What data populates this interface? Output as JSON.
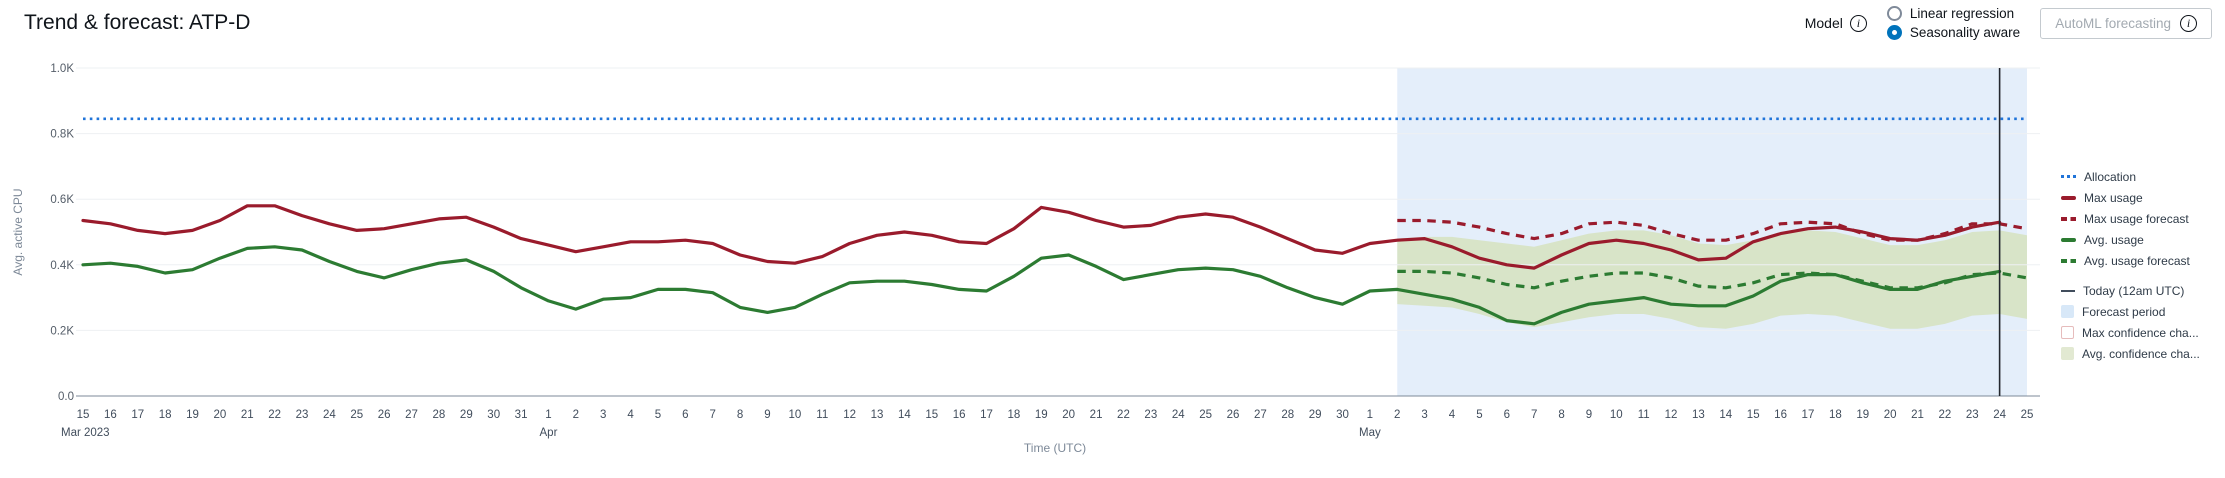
{
  "header": {
    "title": "Trend & forecast: ATP-D"
  },
  "controls": {
    "model_label": "Model",
    "model_info_icon": "info-icon",
    "radio_options": [
      {
        "label": "Linear regression",
        "selected": false
      },
      {
        "label": "Seasonality aware",
        "selected": true
      }
    ],
    "automl_button_label": "AutoML forecasting",
    "automl_info_icon": "info-icon"
  },
  "legend": {
    "items": [
      {
        "label": "Allocation",
        "swatch": "dotted-line",
        "color": "#2074d9",
        "group": 1
      },
      {
        "label": "Max usage",
        "swatch": "solid-line",
        "color": "#9a1b2c",
        "group": 1
      },
      {
        "label": "Max usage forecast",
        "swatch": "dashed-line",
        "color": "#9a1b2c",
        "group": 1
      },
      {
        "label": "Avg. usage",
        "swatch": "solid-line",
        "color": "#2c7b32",
        "group": 1
      },
      {
        "label": "Avg. usage forecast",
        "swatch": "dashed-line",
        "color": "#2c7b32",
        "group": 1
      },
      {
        "label": "Today (12am UTC)",
        "swatch": "thin-line",
        "color": "#414d5c",
        "group": 2
      },
      {
        "label": "Forecast period",
        "swatch": "fill",
        "color": "#d8e8f8",
        "group": 2
      },
      {
        "label": "Max confidence cha...",
        "swatch": "fill-outline",
        "color": "#ffffff",
        "border": "#e6bcbc",
        "group": 2
      },
      {
        "label": "Avg. confidence cha...",
        "swatch": "fill",
        "color": "#e2e9d2",
        "group": 2
      }
    ]
  },
  "chart_data": {
    "type": "line",
    "title": "Trend & forecast: ATP-D",
    "xlabel": "Time (UTC)",
    "ylabel": "Avg. active CPU",
    "x_start_date": "Mar 15 2023",
    "x_end_date": "May 25 2023",
    "ylim": [
      0,
      1000
    ],
    "y_ticks": [
      "0.0",
      "0.2K",
      "0.4K",
      "0.6K",
      "0.8K",
      "1.0K"
    ],
    "grid": "horizontal-only",
    "legend_position": "right",
    "x_labels": [
      "15",
      "16",
      "17",
      "18",
      "19",
      "20",
      "21",
      "22",
      "23",
      "24",
      "25",
      "26",
      "27",
      "28",
      "29",
      "30",
      "31",
      "1",
      "2",
      "3",
      "4",
      "5",
      "6",
      "7",
      "8",
      "9",
      "10",
      "11",
      "12",
      "13",
      "14",
      "15",
      "16",
      "17",
      "18",
      "19",
      "20",
      "21",
      "22",
      "23",
      "24",
      "25",
      "26",
      "27",
      "28",
      "29",
      "30",
      "1",
      "2",
      "3",
      "4",
      "5",
      "6",
      "7",
      "8",
      "9",
      "10",
      "11",
      "12",
      "13",
      "14",
      "15",
      "16",
      "17",
      "18",
      "19",
      "20",
      "21",
      "22",
      "23",
      "24",
      "25"
    ],
    "month_markers": [
      {
        "index": 0,
        "label": "Mar 2023"
      },
      {
        "index": 17,
        "label": "Apr"
      },
      {
        "index": 47,
        "label": "May"
      }
    ],
    "allocation_value": 845,
    "forecast_start_index": 48,
    "today_index": 70,
    "colors": {
      "allocation": "#2074d9",
      "max_usage": "#9a1b2c",
      "avg_usage": "#2c7b32",
      "today_line": "#23272e",
      "forecast_region": "#e4eefa",
      "avg_confidence_band": "rgba(203,218,146,0.48)",
      "gridline": "#eef0f3",
      "axis_line": "#7d8998",
      "tick_text": "#414d5c",
      "axis_title_text": "#7d8998"
    },
    "series": [
      {
        "name": "Max usage",
        "style": "solid",
        "color": "#9a1b2c",
        "start_index": 0,
        "values": [
          535,
          525,
          505,
          495,
          505,
          535,
          580,
          580,
          550,
          525,
          505,
          510,
          525,
          540,
          545,
          515,
          480,
          460,
          440,
          455,
          470,
          470,
          475,
          465,
          430,
          410,
          405,
          425,
          465,
          490,
          500,
          490,
          470,
          465,
          510,
          575,
          560,
          535,
          515,
          520,
          545,
          555,
          545,
          515,
          480,
          445,
          435,
          465,
          475,
          480,
          455,
          420,
          400,
          390,
          430,
          465,
          475,
          465,
          445,
          415,
          420,
          470,
          495,
          510,
          515,
          500,
          480,
          475,
          490,
          515,
          530
        ]
      },
      {
        "name": "Avg. usage",
        "style": "solid",
        "color": "#2c7b32",
        "start_index": 0,
        "values": [
          400,
          405,
          395,
          375,
          385,
          420,
          450,
          455,
          445,
          410,
          380,
          360,
          385,
          405,
          415,
          380,
          330,
          290,
          265,
          295,
          300,
          325,
          325,
          315,
          270,
          255,
          270,
          310,
          345,
          350,
          350,
          340,
          325,
          320,
          365,
          420,
          430,
          395,
          355,
          370,
          385,
          390,
          385,
          365,
          330,
          300,
          280,
          320,
          325,
          310,
          295,
          270,
          230,
          220,
          255,
          280,
          290,
          300,
          280,
          275,
          275,
          305,
          350,
          370,
          370,
          345,
          325,
          325,
          350,
          365,
          380
        ]
      },
      {
        "name": "Max usage forecast",
        "style": "dashed",
        "color": "#9a1b2c",
        "start_index": 48,
        "values": [
          535,
          535,
          530,
          515,
          495,
          480,
          495,
          525,
          530,
          520,
          495,
          475,
          475,
          495,
          525,
          530,
          525,
          495,
          475,
          475,
          495,
          525,
          525,
          510
        ]
      },
      {
        "name": "Avg. usage forecast",
        "style": "dashed",
        "color": "#2c7b32",
        "start_index": 48,
        "values": [
          380,
          380,
          375,
          360,
          340,
          330,
          350,
          365,
          375,
          375,
          360,
          335,
          330,
          345,
          370,
          375,
          370,
          350,
          330,
          330,
          345,
          370,
          375,
          360
        ]
      },
      {
        "name": "Avg. confidence channel",
        "style": "band",
        "start_index": 48,
        "upper": [
          480,
          485,
          485,
          475,
          465,
          455,
          475,
          495,
          505,
          505,
          490,
          465,
          460,
          475,
          500,
          505,
          500,
          480,
          460,
          460,
          475,
          500,
          505,
          490
        ],
        "lower": [
          280,
          275,
          270,
          250,
          225,
          210,
          225,
          240,
          250,
          250,
          235,
          210,
          205,
          220,
          245,
          250,
          245,
          225,
          205,
          205,
          220,
          245,
          250,
          235
        ]
      },
      {
        "name": "Max confidence channel",
        "style": "band-hidden",
        "note": "legend entry only, band not visible in plot"
      }
    ]
  }
}
